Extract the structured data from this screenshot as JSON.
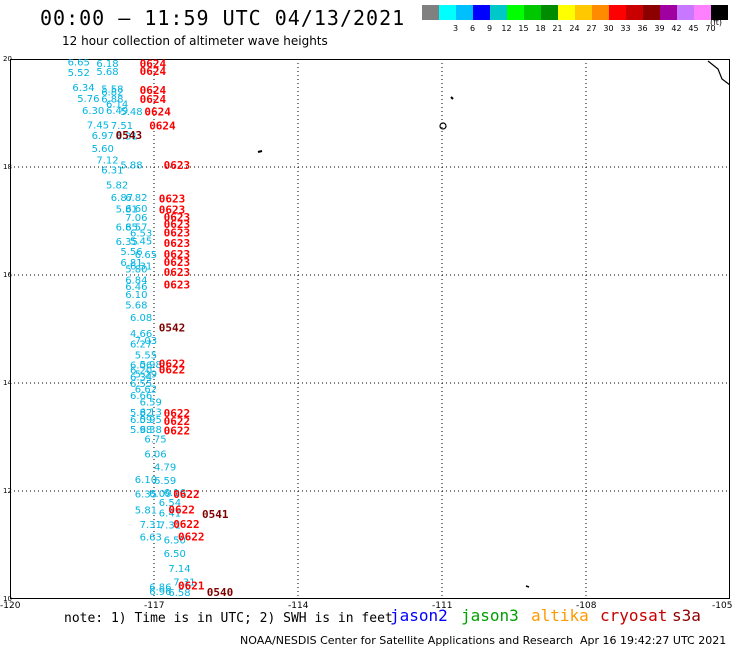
{
  "header": {
    "title": "00:00 – 11:59 UTC 04/13/2021",
    "subtitle": "12 hour collection of altimeter wave heights"
  },
  "scale": {
    "unit": "(ft)",
    "bins": [
      {
        "label": "",
        "color": "#808080"
      },
      {
        "label": "3",
        "color": "#00ffff"
      },
      {
        "label": "6",
        "color": "#00bfff"
      },
      {
        "label": "9",
        "color": "#0000ff"
      },
      {
        "label": "12",
        "color": "#00c8c8"
      },
      {
        "label": "15",
        "color": "#00ff00"
      },
      {
        "label": "18",
        "color": "#00c800"
      },
      {
        "label": "21",
        "color": "#008c00"
      },
      {
        "label": "24",
        "color": "#ffff00"
      },
      {
        "label": "27",
        "color": "#ffc800"
      },
      {
        "label": "30",
        "color": "#ff8c00"
      },
      {
        "label": "33",
        "color": "#ff0000"
      },
      {
        "label": "36",
        "color": "#c80000"
      },
      {
        "label": "39",
        "color": "#8c0000"
      },
      {
        "label": "42",
        "color": "#a000a0"
      },
      {
        "label": "45",
        "color": "#c878ff"
      },
      {
        "label": "70",
        "color": "#ff80ff"
      },
      {
        "label": "",
        "color": "#000000"
      }
    ]
  },
  "axes": {
    "lat_ticks": [
      "20",
      "18",
      "16",
      "14",
      "12",
      "10"
    ],
    "lon_ticks": [
      "-120",
      "-117",
      "-114",
      "-111",
      "-108",
      "-105"
    ]
  },
  "footer": {
    "note": "note: 1) Time is in UTC; 2) SWH is in feet",
    "satellites": [
      {
        "name": "jason2",
        "color": "#0000ff"
      },
      {
        "name": "jason3",
        "color": "#00a000"
      },
      {
        "name": "altika",
        "color": "#ff9900"
      },
      {
        "name": "cryosat",
        "color": "#c80000"
      },
      {
        "name": "s3a",
        "color": "#900000"
      }
    ],
    "credit": "NOAA/NESDIS Center for Satellite Applications and Research",
    "timestamp": "Apr 16 19:42:27 UTC 2021"
  },
  "colors": {
    "swh_label": "#00b4e0",
    "time_red": "#ff0000",
    "time_dark": "#800000"
  },
  "swh_values": [
    {
      "lon": -118.8,
      "lat": 19.95,
      "text": "6.65"
    },
    {
      "lon": -118.2,
      "lat": 19.93,
      "text": "6.18"
    },
    {
      "lon": -118.8,
      "lat": 19.76,
      "text": "5.52"
    },
    {
      "lon": -118.2,
      "lat": 19.78,
      "text": "5.68"
    },
    {
      "lon": -118.7,
      "lat": 19.48,
      "text": "6.34"
    },
    {
      "lon": -118.1,
      "lat": 19.45,
      "text": "5.58"
    },
    {
      "lon": -118.1,
      "lat": 19.4,
      "text": "6.82"
    },
    {
      "lon": -118.6,
      "lat": 19.28,
      "text": "5.76"
    },
    {
      "lon": -118.1,
      "lat": 19.27,
      "text": "6.88"
    },
    {
      "lon": -118.0,
      "lat": 19.18,
      "text": "6.14"
    },
    {
      "lon": -118.5,
      "lat": 19.06,
      "text": "6.30"
    },
    {
      "lon": -118.0,
      "lat": 19.06,
      "text": "6.49"
    },
    {
      "lon": -117.7,
      "lat": 19.04,
      "text": "5.48"
    },
    {
      "lon": -118.4,
      "lat": 18.79,
      "text": "7.45"
    },
    {
      "lon": -117.9,
      "lat": 18.78,
      "text": "7.51"
    },
    {
      "lon": -118.3,
      "lat": 18.59,
      "text": "6.97"
    },
    {
      "lon": -117.8,
      "lat": 18.58,
      "text": "6.31"
    },
    {
      "lon": -118.3,
      "lat": 18.35,
      "text": "5.60"
    },
    {
      "lon": -118.2,
      "lat": 18.14,
      "text": "7.12"
    },
    {
      "lon": -117.7,
      "lat": 18.05,
      "text": "5.88"
    },
    {
      "lon": -118.1,
      "lat": 17.95,
      "text": "6.31"
    },
    {
      "lon": -118.0,
      "lat": 17.68,
      "text": "5.82"
    },
    {
      "lon": -117.9,
      "lat": 17.44,
      "text": "6.87"
    },
    {
      "lon": -117.6,
      "lat": 17.44,
      "text": "6.82"
    },
    {
      "lon": -117.8,
      "lat": 17.23,
      "text": "5.81"
    },
    {
      "lon": -117.6,
      "lat": 17.24,
      "text": "6.60"
    },
    {
      "lon": -117.6,
      "lat": 17.07,
      "text": "7.06"
    },
    {
      "lon": -117.8,
      "lat": 16.9,
      "text": "6.85"
    },
    {
      "lon": -117.6,
      "lat": 16.9,
      "text": "6.57"
    },
    {
      "lon": -117.5,
      "lat": 16.79,
      "text": "6.53"
    },
    {
      "lon": -117.8,
      "lat": 16.63,
      "text": "6.35"
    },
    {
      "lon": -117.5,
      "lat": 16.64,
      "text": "5.45"
    },
    {
      "lon": -117.7,
      "lat": 16.44,
      "text": "5.56"
    },
    {
      "lon": -117.4,
      "lat": 16.39,
      "text": "6.65"
    },
    {
      "lon": -117.7,
      "lat": 16.24,
      "text": "6.81"
    },
    {
      "lon": -117.5,
      "lat": 16.18,
      "text": "6.31"
    },
    {
      "lon": -117.6,
      "lat": 16.12,
      "text": "5.80"
    },
    {
      "lon": -117.6,
      "lat": 15.92,
      "text": "6.84"
    },
    {
      "lon": -117.6,
      "lat": 15.8,
      "text": "6.46"
    },
    {
      "lon": -117.6,
      "lat": 15.65,
      "text": "6.10"
    },
    {
      "lon": -117.6,
      "lat": 15.45,
      "text": "5.68"
    },
    {
      "lon": -117.5,
      "lat": 15.22,
      "text": "6.08"
    },
    {
      "lon": -117.5,
      "lat": 14.93,
      "text": "4.66"
    },
    {
      "lon": -117.4,
      "lat": 14.8,
      "text": "7.03"
    },
    {
      "lon": -117.5,
      "lat": 14.73,
      "text": "6.27"
    },
    {
      "lon": -117.4,
      "lat": 14.53,
      "text": "5.55"
    },
    {
      "lon": -117.5,
      "lat": 14.34,
      "text": "6.06"
    },
    {
      "lon": -117.3,
      "lat": 14.35,
      "text": "5.98"
    },
    {
      "lon": -117.5,
      "lat": 14.25,
      "text": "6.20"
    },
    {
      "lon": -117.4,
      "lat": 14.18,
      "text": "5.29"
    },
    {
      "lon": -117.5,
      "lat": 14.12,
      "text": "6.34"
    },
    {
      "lon": -117.5,
      "lat": 14.0,
      "text": "6.55"
    },
    {
      "lon": -117.4,
      "lat": 13.9,
      "text": "6.62"
    },
    {
      "lon": -117.5,
      "lat": 13.78,
      "text": "6.66"
    },
    {
      "lon": -117.3,
      "lat": 13.66,
      "text": "6.59"
    },
    {
      "lon": -117.5,
      "lat": 13.46,
      "text": "5.82"
    },
    {
      "lon": -117.3,
      "lat": 13.47,
      "text": "6.13"
    },
    {
      "lon": -117.5,
      "lat": 13.33,
      "text": "6.09"
    },
    {
      "lon": -117.3,
      "lat": 13.33,
      "text": "5.95"
    },
    {
      "lon": -117.5,
      "lat": 13.15,
      "text": "5.98"
    },
    {
      "lon": -117.3,
      "lat": 13.15,
      "text": "6.38"
    },
    {
      "lon": -117.2,
      "lat": 12.97,
      "text": "6.75"
    },
    {
      "lon": -117.2,
      "lat": 12.69,
      "text": "6.06"
    },
    {
      "lon": -117.0,
      "lat": 12.45,
      "text": "4.79"
    },
    {
      "lon": -117.4,
      "lat": 12.22,
      "text": "6.10"
    },
    {
      "lon": -117.0,
      "lat": 12.2,
      "text": "6.59"
    },
    {
      "lon": -117.4,
      "lat": 11.95,
      "text": "6.35"
    },
    {
      "lon": -117.1,
      "lat": 11.96,
      "text": "6.09"
    },
    {
      "lon": -116.8,
      "lat": 11.98,
      "text": "6.16"
    },
    {
      "lon": -116.9,
      "lat": 11.8,
      "text": "6.54"
    },
    {
      "lon": -117.4,
      "lat": 11.66,
      "text": "5.81"
    },
    {
      "lon": -116.9,
      "lat": 11.6,
      "text": "6.41"
    },
    {
      "lon": -117.3,
      "lat": 11.39,
      "text": "7.31"
    },
    {
      "lon": -116.9,
      "lat": 11.38,
      "text": "7.31"
    },
    {
      "lon": -117.3,
      "lat": 11.16,
      "text": "6.63"
    },
    {
      "lon": -116.8,
      "lat": 11.1,
      "text": "6.50"
    },
    {
      "lon": -116.8,
      "lat": 10.85,
      "text": "6.50"
    },
    {
      "lon": -116.7,
      "lat": 10.57,
      "text": "7.14"
    },
    {
      "lon": -116.6,
      "lat": 10.32,
      "text": "7.31"
    },
    {
      "lon": -117.1,
      "lat": 10.23,
      "text": "6.86"
    },
    {
      "lon": -117.1,
      "lat": 10.15,
      "text": "6.96"
    },
    {
      "lon": -116.7,
      "lat": 10.13,
      "text": "6.58"
    }
  ],
  "time_labels": [
    {
      "lon": -117.3,
      "lat": 19.92,
      "text": "0624",
      "sat": "cryosat"
    },
    {
      "lon": -117.3,
      "lat": 19.78,
      "text": "0624",
      "sat": "cryosat"
    },
    {
      "lon": -117.3,
      "lat": 19.43,
      "text": "0624",
      "sat": "cryosat"
    },
    {
      "lon": -117.3,
      "lat": 19.26,
      "text": "0624",
      "sat": "cryosat"
    },
    {
      "lon": -117.2,
      "lat": 19.03,
      "text": "0624",
      "sat": "cryosat"
    },
    {
      "lon": -117.1,
      "lat": 18.77,
      "text": "0624",
      "sat": "cryosat"
    },
    {
      "lon": -117.8,
      "lat": 18.59,
      "text": "0543",
      "sat": "s3a"
    },
    {
      "lon": -116.8,
      "lat": 18.04,
      "text": "0623",
      "sat": "cryosat"
    },
    {
      "lon": -116.9,
      "lat": 17.42,
      "text": "0623",
      "sat": "cryosat"
    },
    {
      "lon": -116.9,
      "lat": 17.21,
      "text": "0623",
      "sat": "cryosat"
    },
    {
      "lon": -116.8,
      "lat": 17.07,
      "text": "0623",
      "sat": "cryosat"
    },
    {
      "lon": -116.8,
      "lat": 16.94,
      "text": "0623",
      "sat": "cryosat"
    },
    {
      "lon": -116.8,
      "lat": 16.79,
      "text": "0623",
      "sat": "cryosat"
    },
    {
      "lon": -116.8,
      "lat": 16.59,
      "text": "0623",
      "sat": "cryosat"
    },
    {
      "lon": -116.8,
      "lat": 16.39,
      "text": "0623",
      "sat": "cryosat"
    },
    {
      "lon": -116.8,
      "lat": 16.24,
      "text": "0623",
      "sat": "cryosat"
    },
    {
      "lon": -116.8,
      "lat": 16.06,
      "text": "0623",
      "sat": "cryosat"
    },
    {
      "lon": -116.8,
      "lat": 15.82,
      "text": "0623",
      "sat": "cryosat"
    },
    {
      "lon": -116.9,
      "lat": 15.03,
      "text": "0542",
      "sat": "s3a"
    },
    {
      "lon": -116.9,
      "lat": 14.36,
      "text": "0622",
      "sat": "cryosat"
    },
    {
      "lon": -116.9,
      "lat": 14.25,
      "text": "0622",
      "sat": "cryosat"
    },
    {
      "lon": -116.8,
      "lat": 13.44,
      "text": "0622",
      "sat": "cryosat"
    },
    {
      "lon": -116.8,
      "lat": 13.3,
      "text": "0622",
      "sat": "cryosat"
    },
    {
      "lon": -116.8,
      "lat": 13.12,
      "text": "0622",
      "sat": "cryosat"
    },
    {
      "lon": -116.6,
      "lat": 11.94,
      "text": "0622",
      "sat": "cryosat"
    },
    {
      "lon": -116.7,
      "lat": 11.66,
      "text": "0622",
      "sat": "cryosat"
    },
    {
      "lon": -116.0,
      "lat": 11.57,
      "text": "0541",
      "sat": "s3a"
    },
    {
      "lon": -116.6,
      "lat": 11.39,
      "text": "0622",
      "sat": "cryosat"
    },
    {
      "lon": -116.5,
      "lat": 11.16,
      "text": "0622",
      "sat": "cryosat"
    },
    {
      "lon": -116.5,
      "lat": 10.25,
      "text": "0621",
      "sat": "cryosat"
    },
    {
      "lon": -115.9,
      "lat": 10.13,
      "text": "0540",
      "sat": "s3a"
    }
  ]
}
